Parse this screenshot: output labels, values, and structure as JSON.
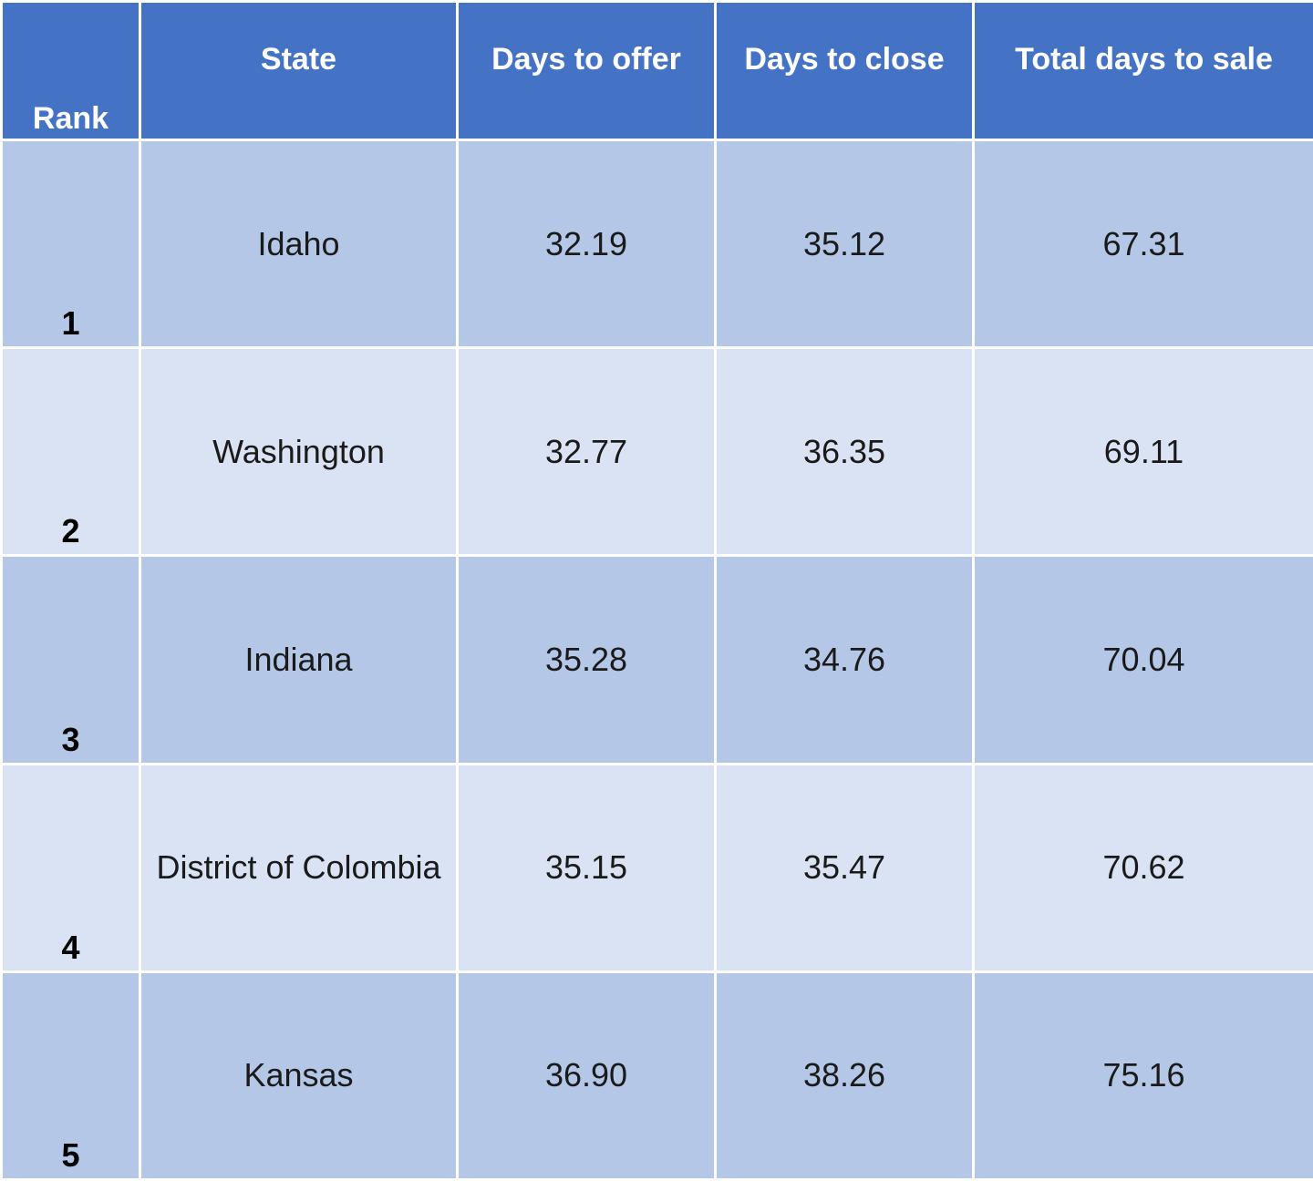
{
  "chart_data": {
    "type": "table",
    "columns": [
      "Rank",
      "State",
      "Days to offer",
      "Days to close",
      "Total days to sale"
    ],
    "rows": [
      {
        "rank": "1",
        "state": "Idaho",
        "days_to_offer": "32.19",
        "days_to_close": "35.12",
        "total_days_to_sale": "67.31"
      },
      {
        "rank": "2",
        "state": "Washington",
        "days_to_offer": "32.77",
        "days_to_close": "36.35",
        "total_days_to_sale": "69.11"
      },
      {
        "rank": "3",
        "state": "Indiana",
        "days_to_offer": "35.28",
        "days_to_close": "34.76",
        "total_days_to_sale": "70.04"
      },
      {
        "rank": "4",
        "state": "District of Colombia",
        "days_to_offer": "35.15",
        "days_to_close": "35.47",
        "total_days_to_sale": "70.62"
      },
      {
        "rank": "5",
        "state": "Kansas",
        "days_to_offer": "36.90",
        "days_to_close": "38.26",
        "total_days_to_sale": "75.16"
      }
    ]
  },
  "colors": {
    "header_bg": "#4472c4",
    "row_odd_bg": "#b4c7e7",
    "row_even_bg": "#dae3f3",
    "header_text": "#ffffff",
    "cell_text": "#1a1a1a"
  }
}
